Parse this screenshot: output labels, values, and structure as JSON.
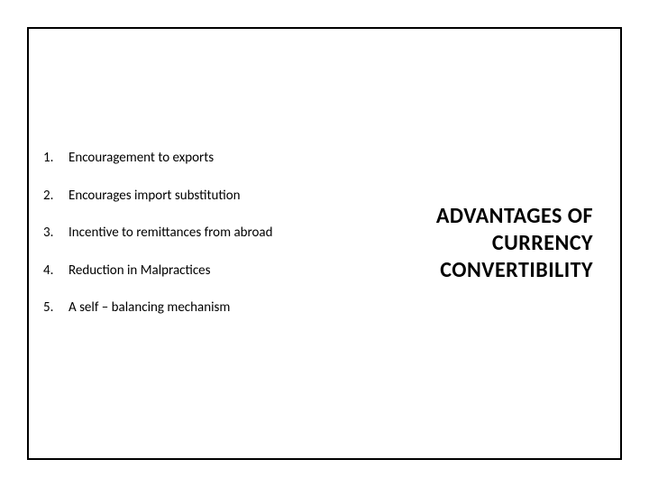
{
  "background_color": "#ffffff",
  "border_color": "#000000",
  "text_color": "#000000",
  "list": [
    {
      "num": "1.",
      "text": "Encouragement to exports"
    },
    {
      "num": "2.",
      "text": "Encourages import substitution"
    },
    {
      "num": "3.",
      "text": "Incentive to remittances from abroad"
    },
    {
      "num": "4.",
      "text": "Reduction in Malpractices"
    },
    {
      "num": "5.",
      "text": "A self – balancing mechanism"
    }
  ],
  "title": {
    "line1": "ADVANTAGES OF",
    "line2": "CURRENCY",
    "line3": "CONVERTIBILITY"
  },
  "styling": {
    "list_fontsize": 15,
    "title_fontsize": 24,
    "title_weight": 700,
    "frame_border_width": 2
  }
}
